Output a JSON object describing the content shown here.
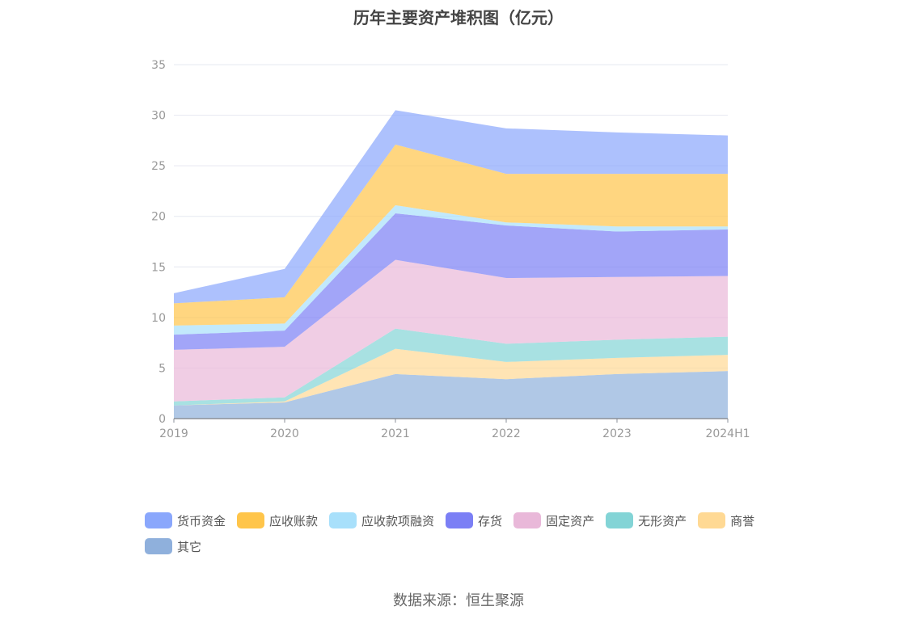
{
  "title": "历年主要资产堆积图（亿元）",
  "source": "数据来源：恒生聚源",
  "chart_data": {
    "type": "area",
    "stacked": true,
    "categories": [
      "2019",
      "2020",
      "2021",
      "2022",
      "2023",
      "2024H1"
    ],
    "ylim": [
      0,
      35
    ],
    "yticks": [
      0,
      5,
      10,
      15,
      20,
      25,
      30,
      35
    ],
    "grid": true,
    "legend_position": "bottom",
    "series": [
      {
        "name": "其它",
        "color": "#8fb0dc",
        "values": [
          1.3,
          1.6,
          4.4,
          3.9,
          4.4,
          4.7
        ]
      },
      {
        "name": "商誉",
        "color": "#ffd994",
        "values": [
          0.0,
          0.1,
          2.5,
          1.7,
          1.6,
          1.6
        ]
      },
      {
        "name": "无形资产",
        "color": "#83d4d6",
        "values": [
          0.4,
          0.4,
          2.0,
          1.8,
          1.8,
          1.8
        ]
      },
      {
        "name": "固定资产",
        "color": "#e9b8d9",
        "values": [
          5.1,
          5.0,
          6.8,
          6.5,
          6.2,
          6.0
        ]
      },
      {
        "name": "存货",
        "color": "#7b7ff5",
        "values": [
          1.5,
          1.6,
          4.6,
          5.2,
          4.5,
          4.6
        ]
      },
      {
        "name": "应收款项融资",
        "color": "#a8e0fb",
        "values": [
          0.9,
          0.7,
          0.8,
          0.3,
          0.5,
          0.3
        ]
      },
      {
        "name": "应收账款",
        "color": "#ffc54a",
        "values": [
          2.2,
          2.6,
          6.0,
          4.8,
          5.2,
          5.2
        ]
      },
      {
        "name": "货币资金",
        "color": "#8aa7fc",
        "values": [
          1.0,
          2.8,
          3.4,
          4.5,
          4.1,
          3.8
        ]
      }
    ]
  },
  "legend_order": [
    "货币资金",
    "应收账款",
    "应收款项融资",
    "存货",
    "固定资产",
    "无形资产",
    "商誉",
    "其它"
  ]
}
